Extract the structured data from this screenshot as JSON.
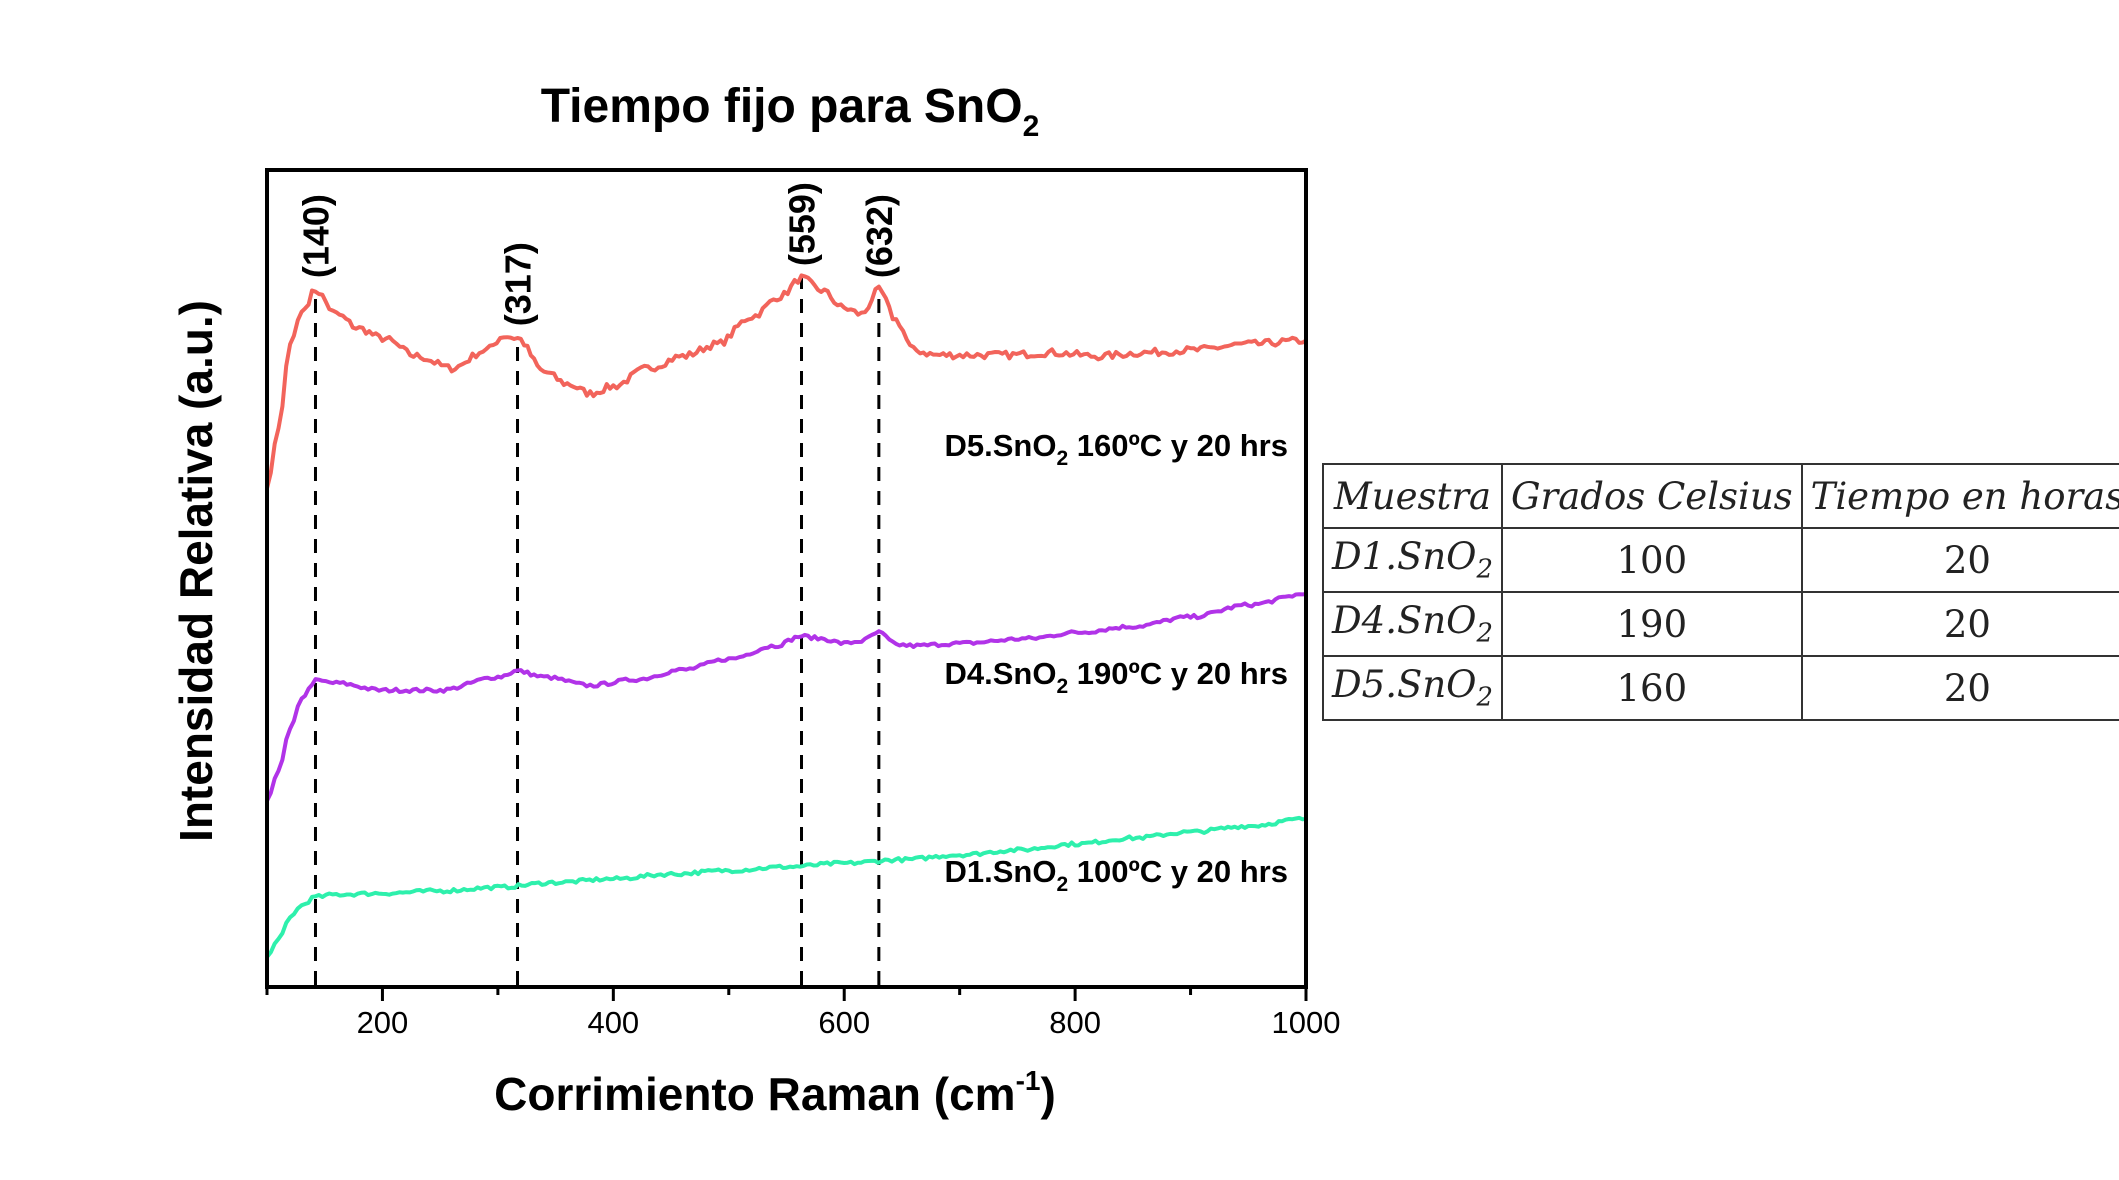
{
  "chart_data": {
    "type": "line",
    "title": "Tiempo fijo para SnO",
    "title_subscript": "2",
    "xlabel": "Corrimiento Raman (cm",
    "xlabel_superscript": "-1",
    "xlabel_suffix": ")",
    "ylabel": "Intensidad Relativa (a.u.)",
    "xlim": [
      100,
      1000
    ],
    "x_ticks": [
      200,
      400,
      600,
      800,
      1000
    ],
    "y_ticks_shown": false,
    "grid": false,
    "peak_markers": [
      {
        "label": "(140)",
        "x": 142
      },
      {
        "label": "(317)",
        "x": 317
      },
      {
        "label": "(559)",
        "x": 563
      },
      {
        "label": "(632)",
        "x": 630
      }
    ],
    "series": [
      {
        "name_prefix": "D5.SnO",
        "name_sub": "2",
        "name_suffix": " 160ºC y 20 hrs",
        "color": "#f2645b",
        "x": [
          100,
          110,
          120,
          130,
          142,
          160,
          180,
          200,
          230,
          260,
          290,
          305,
          317,
          340,
          360,
          380,
          400,
          430,
          460,
          490,
          520,
          545,
          563,
          580,
          600,
          615,
          630,
          645,
          660,
          680,
          700,
          740,
          780,
          820,
          860,
          900,
          950,
          1000
        ],
        "y": [
          3.95,
          4.45,
          5.15,
          5.42,
          5.6,
          5.4,
          5.28,
          5.2,
          5.05,
          4.95,
          5.1,
          5.22,
          5.2,
          4.92,
          4.82,
          4.74,
          4.8,
          4.95,
          5.05,
          5.15,
          5.38,
          5.55,
          5.7,
          5.6,
          5.45,
          5.4,
          5.6,
          5.35,
          5.1,
          5.06,
          5.06,
          5.06,
          5.08,
          5.05,
          5.08,
          5.1,
          5.15,
          5.18
        ]
      },
      {
        "name_prefix": "D4.SnO",
        "name_sub": "2",
        "name_suffix": " 190ºC y 20 hrs",
        "color": "#b133e8",
        "x": [
          100,
          110,
          120,
          130,
          142,
          160,
          200,
          250,
          300,
          317,
          340,
          380,
          420,
          460,
          500,
          540,
          563,
          580,
          600,
          615,
          630,
          645,
          660,
          700,
          760,
          800,
          850,
          900,
          950,
          1000
        ],
        "y": [
          1.35,
          1.6,
          1.95,
          2.2,
          2.35,
          2.33,
          2.27,
          2.27,
          2.38,
          2.43,
          2.38,
          2.31,
          2.36,
          2.44,
          2.53,
          2.64,
          2.72,
          2.7,
          2.66,
          2.68,
          2.75,
          2.65,
          2.64,
          2.66,
          2.7,
          2.75,
          2.8,
          2.88,
          2.98,
          3.07
        ]
      },
      {
        "name_prefix": "D1.SnO",
        "name_sub": "2",
        "name_suffix": " 100ºC y 20 hrs",
        "color": "#2ef0ac",
        "x": [
          100,
          110,
          120,
          130,
          142,
          160,
          200,
          250,
          300,
          350,
          400,
          450,
          500,
          550,
          600,
          650,
          700,
          750,
          800,
          850,
          900,
          950,
          1000
        ],
        "y": [
          0.05,
          0.2,
          0.38,
          0.48,
          0.55,
          0.57,
          0.58,
          0.6,
          0.63,
          0.67,
          0.7,
          0.74,
          0.77,
          0.8,
          0.83,
          0.86,
          0.9,
          0.94,
          0.99,
          1.04,
          1.09,
          1.14,
          1.2
        ]
      }
    ],
    "ylim": [
      -0.2,
      6.6
    ]
  },
  "table": {
    "headers": [
      "Muestra",
      "Grados Celsius",
      "Tiempo en horas"
    ],
    "rows": [
      {
        "sample": "D1.SnO",
        "sub": "2",
        "celsius": "100",
        "hours": "20"
      },
      {
        "sample": "D4.SnO",
        "sub": "2",
        "celsius": "190",
        "hours": "20"
      },
      {
        "sample": "D5.SnO",
        "sub": "2",
        "celsius": "160",
        "hours": "20"
      }
    ]
  }
}
